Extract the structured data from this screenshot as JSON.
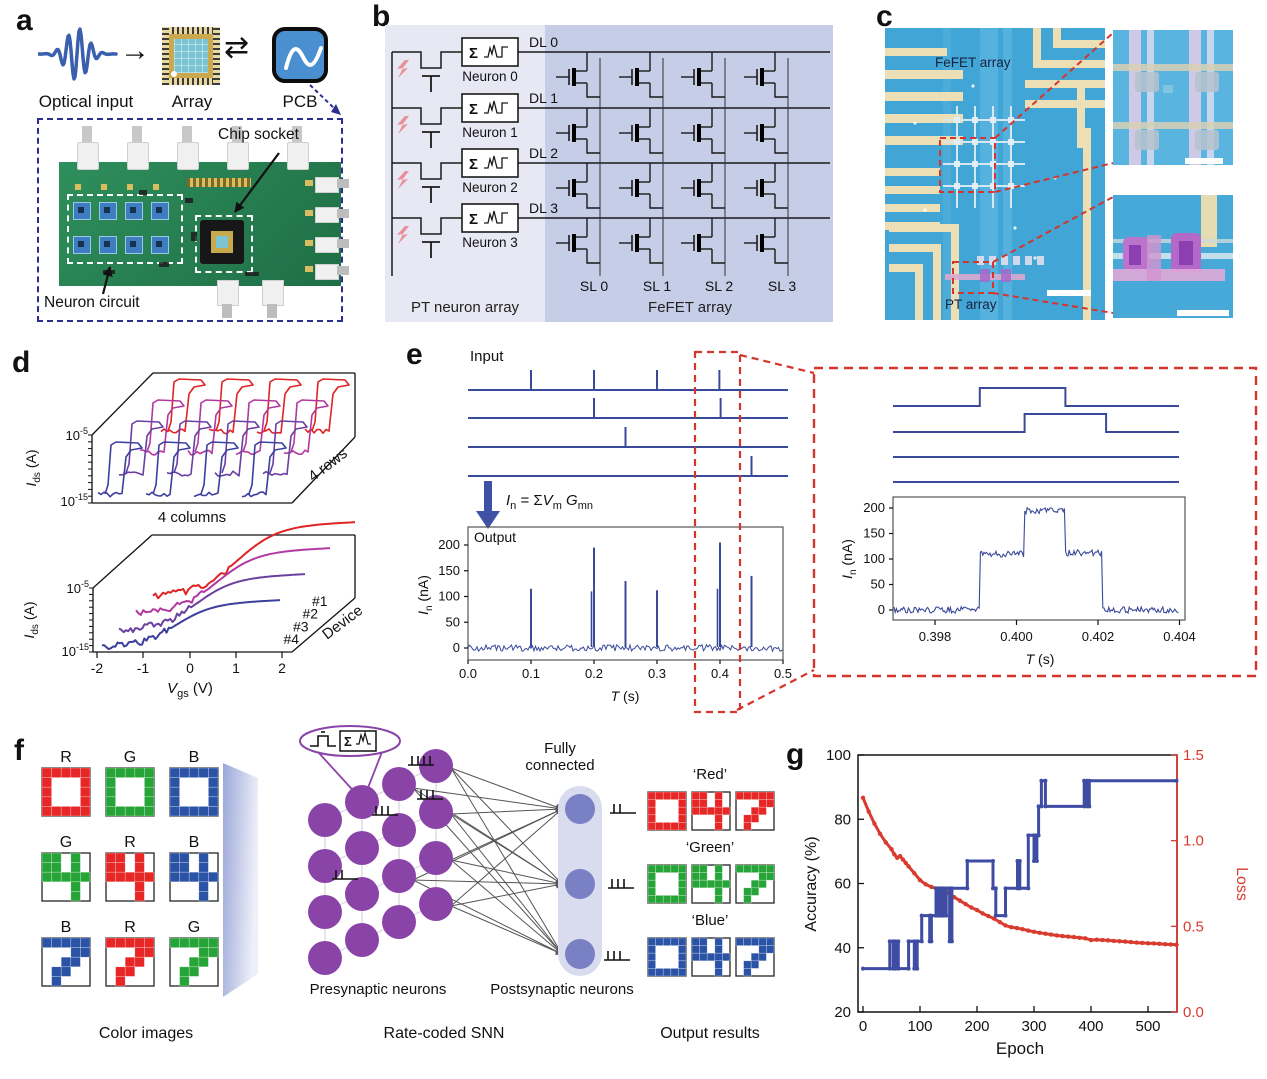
{
  "panel_letters": [
    "a",
    "b",
    "c",
    "d",
    "e",
    "f",
    "g"
  ],
  "colors": {
    "navy_line": "#3a4a9b",
    "red_dashed": "#d4352c",
    "accuracy_blue": "#3e4da3",
    "loss_red": "#d93b2f",
    "neuron_purple": "#8a44a8",
    "postsyn_blue": "#7a80c4",
    "postsyn_pill": "#d9dcef",
    "digit_red": "#e62726",
    "digit_green": "#27a438",
    "digit_blue": "#2b53a5",
    "panelb_left_bg": "#e7e8f4",
    "panelb_right_bg": "#c6cde7",
    "lightning_pink": "#e98f97",
    "pcb_green": "#2a8a57",
    "micro_blue": "#41a6d6",
    "trace_cream": "#ecdfb5",
    "d_curve_colors": [
      "#3b3f9e",
      "#6a3fa0",
      "#b238a0",
      "#e02325"
    ]
  },
  "panel_a": {
    "arrow1": "→",
    "arrow2": "⇄",
    "flow": [
      "Optical input",
      "Array",
      "PCB"
    ],
    "annotations": {
      "chip_socket": "Chip socket",
      "neuron_circuit": "Neuron circuit"
    }
  },
  "panel_b": {
    "dl": [
      "DL 0",
      "DL 1",
      "DL 2",
      "DL 3"
    ],
    "sl": [
      "SL 0",
      "SL 1",
      "SL 2",
      "SL 3"
    ],
    "neurons": [
      "Neuron 0",
      "Neuron 1",
      "Neuron 2",
      "Neuron 3"
    ],
    "sigma": "Σ",
    "regions": [
      "PT neuron array",
      "FeFET array"
    ]
  },
  "panel_c": {
    "top_label": "FeFET array",
    "bottom_label": "PT array"
  },
  "panel_d": {
    "y_top_tokens": [
      [
        "10",
        0,
        0,
        0
      ],
      [
        "-5",
        0,
        0,
        1
      ]
    ],
    "y_bot_tokens": [
      [
        "10",
        0,
        0,
        0
      ],
      [
        "-15",
        0,
        0,
        1
      ]
    ],
    "ylabel_tokens": [
      [
        "I",
        1,
        0,
        0
      ],
      [
        "ds",
        0,
        1,
        0
      ],
      [
        " (A)",
        0,
        0,
        0
      ]
    ],
    "top_xlabel": "4 columns",
    "top_depth": "4 rows",
    "xlabel_tokens": [
      [
        "V",
        1,
        0,
        0
      ],
      [
        "gs",
        0,
        1,
        0
      ],
      [
        " (V)",
        0,
        0,
        0
      ]
    ],
    "xticks": [
      "-2",
      "-1",
      "0",
      "1",
      "2"
    ],
    "devices": [
      "#1",
      "#2",
      "#3",
      "#4"
    ],
    "depth_label": "Device"
  },
  "panel_e": {
    "input_label": "Input",
    "output_label": "Output",
    "formula_tokens": [
      [
        "I",
        1,
        0,
        0
      ],
      [
        "n",
        0,
        1,
        0
      ],
      [
        " = Σ",
        0,
        0,
        0
      ],
      [
        "V",
        1,
        0,
        0
      ],
      [
        "m",
        0,
        1,
        0
      ],
      [
        " ",
        0,
        0,
        0
      ],
      [
        "G",
        1,
        0,
        0
      ],
      [
        "mn",
        0,
        1,
        0
      ]
    ],
    "ylabel_tokens": [
      [
        "I",
        1,
        0,
        0
      ],
      [
        "n",
        0,
        1,
        0
      ],
      [
        " (nA)",
        0,
        0,
        0
      ]
    ],
    "xlabel_tokens": [
      [
        "T",
        1,
        0,
        0
      ],
      [
        " (s)",
        0,
        0,
        0
      ]
    ]
  },
  "panel_f": {
    "row_letters": [
      [
        "R",
        "G",
        "B"
      ],
      [
        "G",
        "R",
        "B"
      ],
      [
        "B",
        "R",
        "G"
      ]
    ],
    "row_colors": [
      [
        "red",
        "green",
        "blue"
      ],
      [
        "green",
        "red",
        "blue"
      ],
      [
        "blue",
        "red",
        "green"
      ]
    ],
    "row_digits": [
      "0",
      "4",
      "7"
    ],
    "digit_patterns": {
      "0": [
        [
          1,
          1,
          1,
          1,
          1
        ],
        [
          1,
          0,
          0,
          0,
          1
        ],
        [
          1,
          0,
          0,
          0,
          1
        ],
        [
          1,
          0,
          0,
          0,
          1
        ],
        [
          1,
          1,
          1,
          1,
          1
        ]
      ],
      "4": [
        [
          1,
          1,
          0,
          1,
          0
        ],
        [
          1,
          1,
          0,
          1,
          0
        ],
        [
          1,
          1,
          1,
          1,
          1
        ],
        [
          0,
          0,
          0,
          1,
          0
        ],
        [
          0,
          0,
          0,
          1,
          0
        ]
      ],
      "7": [
        [
          1,
          1,
          1,
          1,
          1
        ],
        [
          0,
          0,
          0,
          1,
          1
        ],
        [
          0,
          0,
          1,
          1,
          0
        ],
        [
          0,
          1,
          1,
          0,
          0
        ],
        [
          0,
          1,
          0,
          0,
          0
        ]
      ]
    },
    "captions": {
      "left": "Color images",
      "mid": "Rate-coded SNN",
      "right": "Output results"
    },
    "fully_connected": "Fully connected",
    "presynaptic": "Presynaptic neurons",
    "postsynaptic": "Postsynaptic neurons",
    "outputs": [
      {
        "label": "‘Red’",
        "color": "red"
      },
      {
        "label": "‘Green’",
        "color": "green"
      },
      {
        "label": "‘Blue’",
        "color": "blue"
      }
    ],
    "output_digits": [
      "0",
      "4",
      "7"
    ]
  },
  "chart_data": [
    {
      "id": "e_input",
      "type": "line",
      "subtype": "spike-trains",
      "lines": [
        [
          0.1,
          0.2,
          0.3,
          0.399
        ],
        [
          0.2,
          0.401
        ],
        [
          0.25
        ],
        [
          0.45
        ]
      ],
      "xlim": [
        0,
        0.5
      ]
    },
    {
      "id": "e_output",
      "type": "line",
      "title": "Output",
      "xlabel": "T (s)",
      "ylabel": "In (nA)",
      "xlim": [
        0,
        0.5
      ],
      "ylim": [
        -15,
        215
      ],
      "xticks": [
        0,
        0.1,
        0.2,
        0.3,
        0.4,
        0.5
      ],
      "yticks": [
        0,
        50,
        100,
        150,
        200
      ],
      "spikes": [
        [
          0.1,
          115
        ],
        [
          0.2,
          195
        ],
        [
          0.25,
          130
        ],
        [
          0.3,
          112
        ],
        [
          0.4,
          205
        ],
        [
          0.45,
          140
        ]
      ],
      "sub_spikes": [
        [
          0.2,
          110
        ],
        [
          0.4,
          115
        ]
      ],
      "noise_nA": 6
    },
    {
      "id": "e_inset",
      "type": "line",
      "xlabel": "T (s)",
      "ylabel": "In (nA)",
      "xlim": [
        0.397,
        0.404
      ],
      "xticks": [
        0.398,
        0.4,
        0.402,
        0.404
      ],
      "yticks": [
        0,
        50,
        100,
        150,
        200
      ],
      "pulse_lines": [
        {
          "rise": 0.3991,
          "fall": 0.4012
        },
        {
          "rise": 0.4002,
          "fall": 0.4022
        },
        null,
        null
      ],
      "steps": [
        [
          0.397,
          0
        ],
        [
          0.3991,
          0
        ],
        [
          0.3991,
          110
        ],
        [
          0.4002,
          110
        ],
        [
          0.4002,
          195
        ],
        [
          0.4012,
          195
        ],
        [
          0.4012,
          112
        ],
        [
          0.4021,
          112
        ],
        [
          0.4021,
          0
        ],
        [
          0.404,
          0
        ]
      ],
      "noise_nA": 7
    },
    {
      "id": "g_training",
      "type": "line",
      "xlabel": "Epoch",
      "ylabel_left": "Accuracy (%)",
      "ylabel_right": "Loss",
      "xlim": [
        0,
        550
      ],
      "ylim_left": [
        20,
        100
      ],
      "ylim_right": [
        0,
        1.5
      ],
      "xticks": [
        0,
        100,
        200,
        300,
        400,
        500
      ],
      "yticks_left": [
        20,
        40,
        60,
        80,
        100
      ],
      "yticks_right": [
        0,
        0.5,
        1,
        1.5
      ],
      "accuracy_steps": [
        [
          0,
          33.5
        ],
        [
          47,
          33.5
        ],
        [
          47,
          42
        ],
        [
          53,
          42
        ],
        [
          53,
          33.5
        ],
        [
          57,
          33.5
        ],
        [
          57,
          42
        ],
        [
          62,
          42
        ],
        [
          62,
          33.5
        ],
        [
          80,
          33.5
        ],
        [
          80,
          42
        ],
        [
          90,
          42
        ],
        [
          90,
          33.5
        ],
        [
          95,
          33.5
        ],
        [
          95,
          42
        ],
        [
          103,
          42
        ],
        [
          103,
          50
        ],
        [
          117,
          50
        ],
        [
          117,
          42
        ],
        [
          120,
          42
        ],
        [
          120,
          50
        ],
        [
          128,
          50
        ],
        [
          128,
          58.5
        ],
        [
          133,
          58.5
        ],
        [
          133,
          50
        ],
        [
          137,
          50
        ],
        [
          137,
          58.5
        ],
        [
          141,
          58.5
        ],
        [
          141,
          50
        ],
        [
          146,
          50
        ],
        [
          146,
          58.5
        ],
        [
          152,
          58.5
        ],
        [
          152,
          42
        ],
        [
          156,
          42
        ],
        [
          156,
          58.5
        ],
        [
          183,
          58.5
        ],
        [
          183,
          67
        ],
        [
          228,
          67
        ],
        [
          228,
          58.5
        ],
        [
          233,
          58.5
        ],
        [
          233,
          50
        ],
        [
          250,
          50
        ],
        [
          250,
          58.5
        ],
        [
          271,
          58.5
        ],
        [
          271,
          67
        ],
        [
          275,
          67
        ],
        [
          275,
          58.5
        ],
        [
          290,
          58.5
        ],
        [
          290,
          75
        ],
        [
          300,
          75
        ],
        [
          300,
          67
        ],
        [
          305,
          67
        ],
        [
          305,
          75
        ],
        [
          308,
          75
        ],
        [
          308,
          84
        ],
        [
          313,
          84
        ],
        [
          313,
          92
        ],
        [
          320,
          92
        ],
        [
          320,
          84
        ],
        [
          388,
          84
        ],
        [
          388,
          92
        ],
        [
          393,
          92
        ],
        [
          393,
          84
        ],
        [
          397,
          84
        ],
        [
          397,
          92
        ],
        [
          550,
          92
        ]
      ],
      "loss_points": [
        [
          0,
          1.25
        ],
        [
          10,
          1.17
        ],
        [
          20,
          1.1
        ],
        [
          30,
          1.04
        ],
        [
          40,
          0.99
        ],
        [
          50,
          0.95
        ],
        [
          55,
          0.92
        ],
        [
          60,
          0.9
        ],
        [
          65,
          0.91
        ],
        [
          70,
          0.89
        ],
        [
          75,
          0.87
        ],
        [
          80,
          0.85
        ],
        [
          90,
          0.81
        ],
        [
          100,
          0.77
        ],
        [
          110,
          0.745
        ],
        [
          120,
          0.73
        ],
        [
          130,
          0.72
        ],
        [
          140,
          0.71
        ],
        [
          150,
          0.695
        ],
        [
          160,
          0.67
        ],
        [
          170,
          0.65
        ],
        [
          180,
          0.63
        ],
        [
          190,
          0.61
        ],
        [
          200,
          0.595
        ],
        [
          210,
          0.575
        ],
        [
          220,
          0.56
        ],
        [
          230,
          0.545
        ],
        [
          240,
          0.525
        ],
        [
          250,
          0.505
        ],
        [
          260,
          0.495
        ],
        [
          270,
          0.49
        ],
        [
          280,
          0.483
        ],
        [
          290,
          0.475
        ],
        [
          300,
          0.468
        ],
        [
          310,
          0.462
        ],
        [
          320,
          0.457
        ],
        [
          330,
          0.452
        ],
        [
          340,
          0.447
        ],
        [
          350,
          0.443
        ],
        [
          360,
          0.44
        ],
        [
          370,
          0.437
        ],
        [
          380,
          0.433
        ],
        [
          390,
          0.43
        ],
        [
          400,
          0.42
        ],
        [
          410,
          0.422
        ],
        [
          420,
          0.42
        ],
        [
          430,
          0.418
        ],
        [
          440,
          0.415
        ],
        [
          450,
          0.413
        ],
        [
          460,
          0.411
        ],
        [
          470,
          0.408
        ],
        [
          480,
          0.405
        ],
        [
          490,
          0.403
        ],
        [
          500,
          0.401
        ],
        [
          510,
          0.4
        ],
        [
          520,
          0.398
        ],
        [
          530,
          0.396
        ],
        [
          540,
          0.394
        ],
        [
          550,
          0.392
        ]
      ]
    },
    {
      "id": "d_top",
      "type": "line",
      "description": "16 FeFET hysteresis transfer curves, 4 columns x 4 rows",
      "ylabel": "Ids (A)",
      "y_range_log": [
        "1e-15",
        "1e-5"
      ],
      "xlabel": "4 columns",
      "depth_label": "4 rows"
    },
    {
      "id": "d_bottom",
      "type": "line",
      "description": "Transfer curves of 4 phototransistor devices",
      "xlabel": "Vgs (V)",
      "xlim": [
        -2,
        2
      ],
      "devices": [
        "#1",
        "#2",
        "#3",
        "#4"
      ],
      "ylabel": "Ids (A)",
      "y_range_log": [
        "1e-15",
        "1e-5"
      ]
    }
  ]
}
